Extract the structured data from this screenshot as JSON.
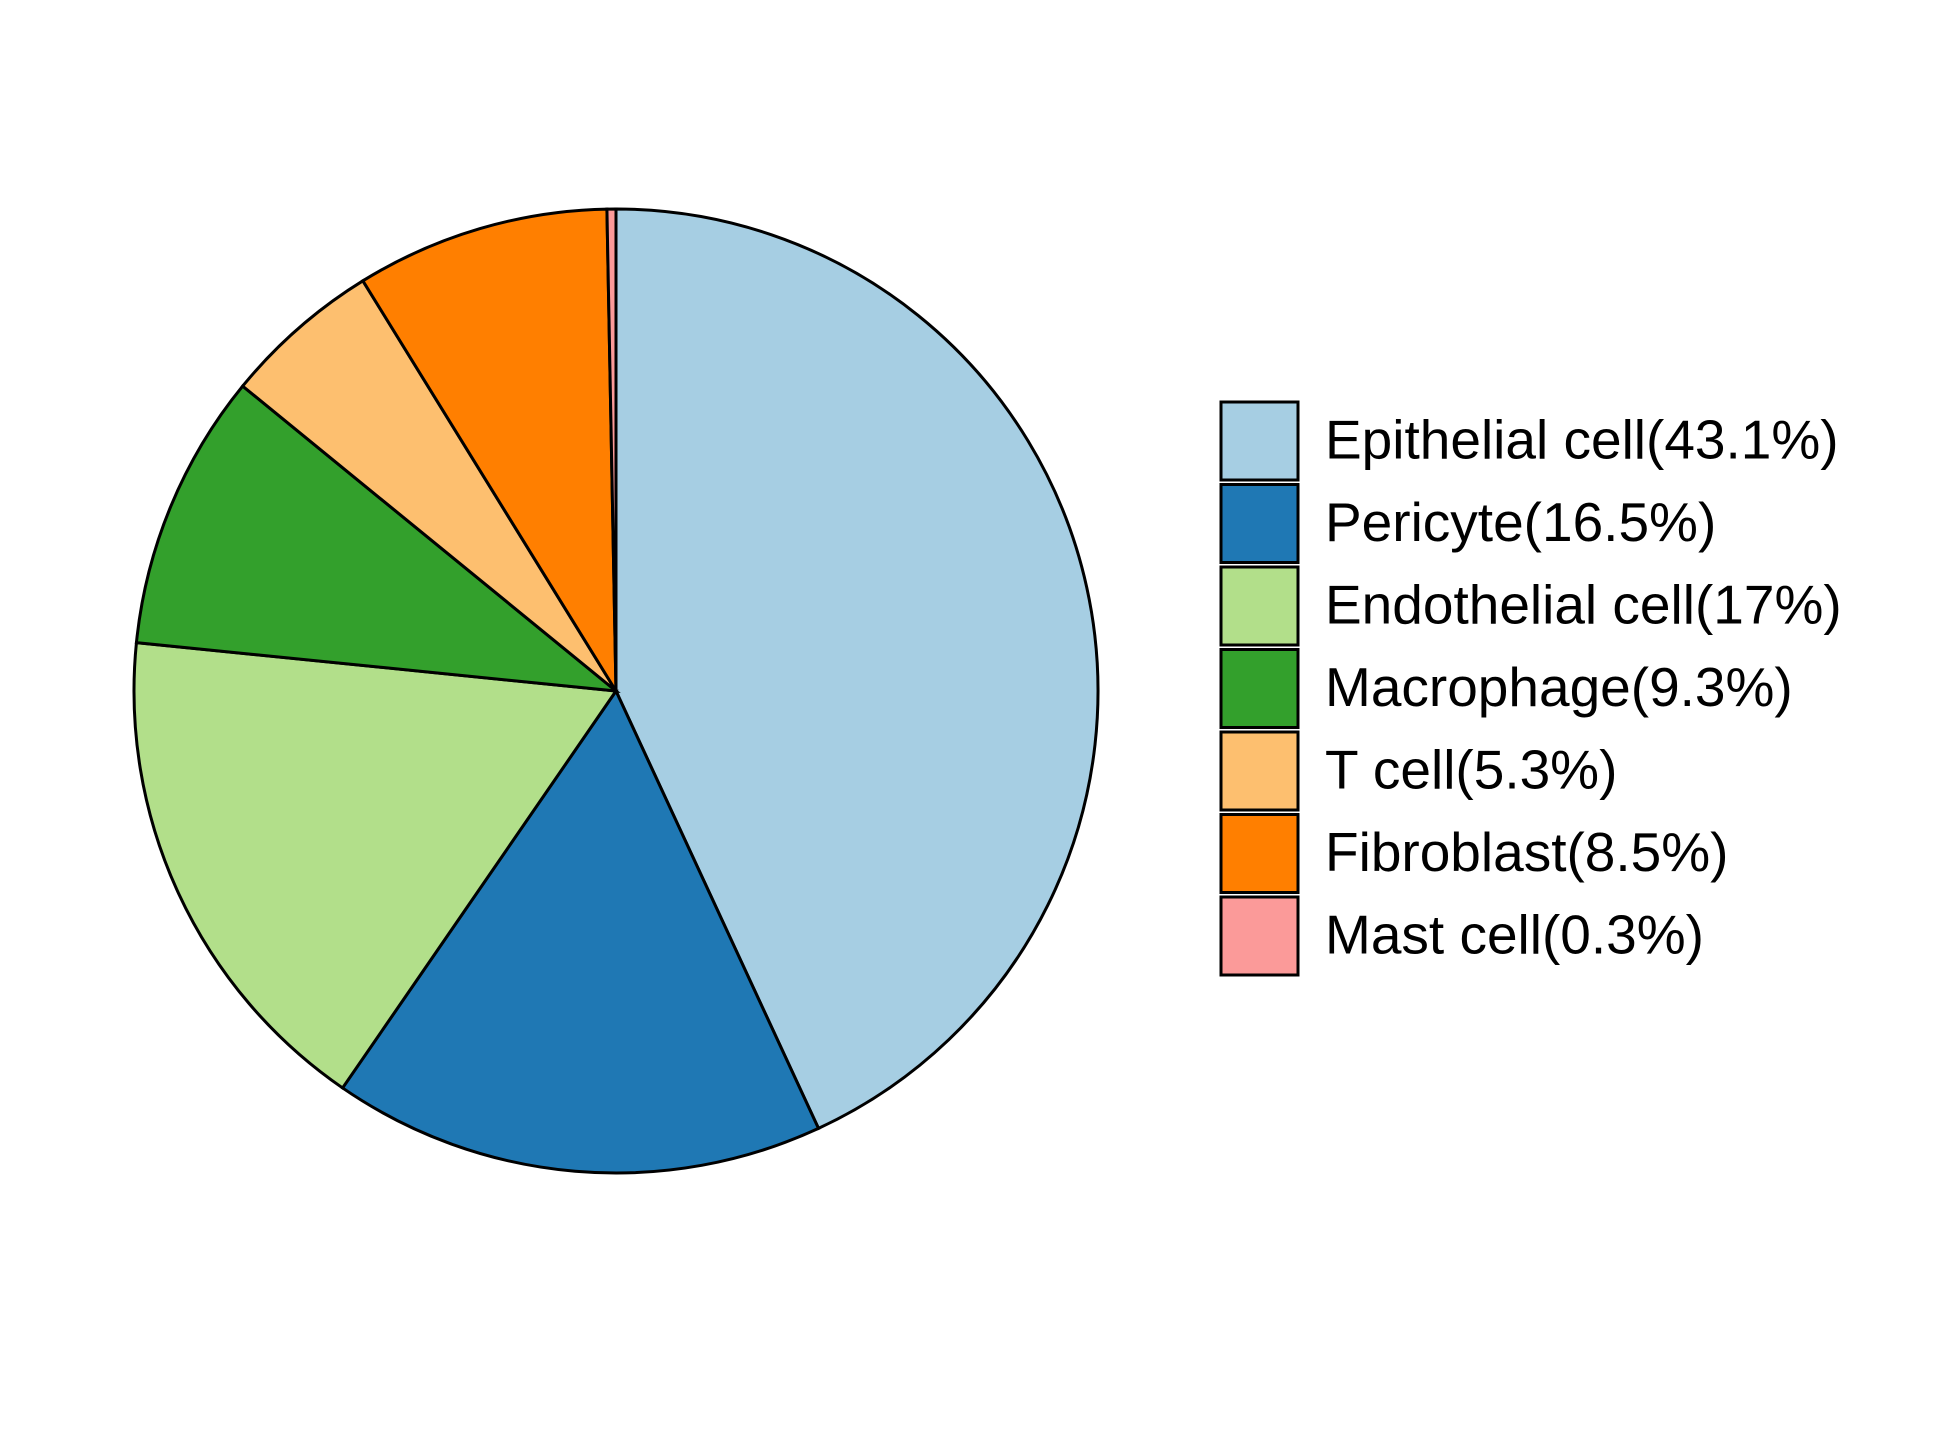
{
  "chart_data": {
    "type": "pie",
    "labels": [
      "Epithelial cell(43.1%)",
      "Pericyte(16.5%)",
      "Endothelial cell(17%)",
      "Macrophage(9.3%)",
      "T cell(5.3%)",
      "Fibroblast(8.5%)",
      "Mast cell(0.3%)"
    ],
    "values": [
      43.1,
      16.5,
      17,
      9.3,
      5.3,
      8.5,
      0.3
    ],
    "colors": [
      "#a6cee3",
      "#1f78b4",
      "#b2df8a",
      "#33a02c",
      "#fdbf6f",
      "#ff7f00",
      "#fb9a99"
    ],
    "legend": "right"
  }
}
